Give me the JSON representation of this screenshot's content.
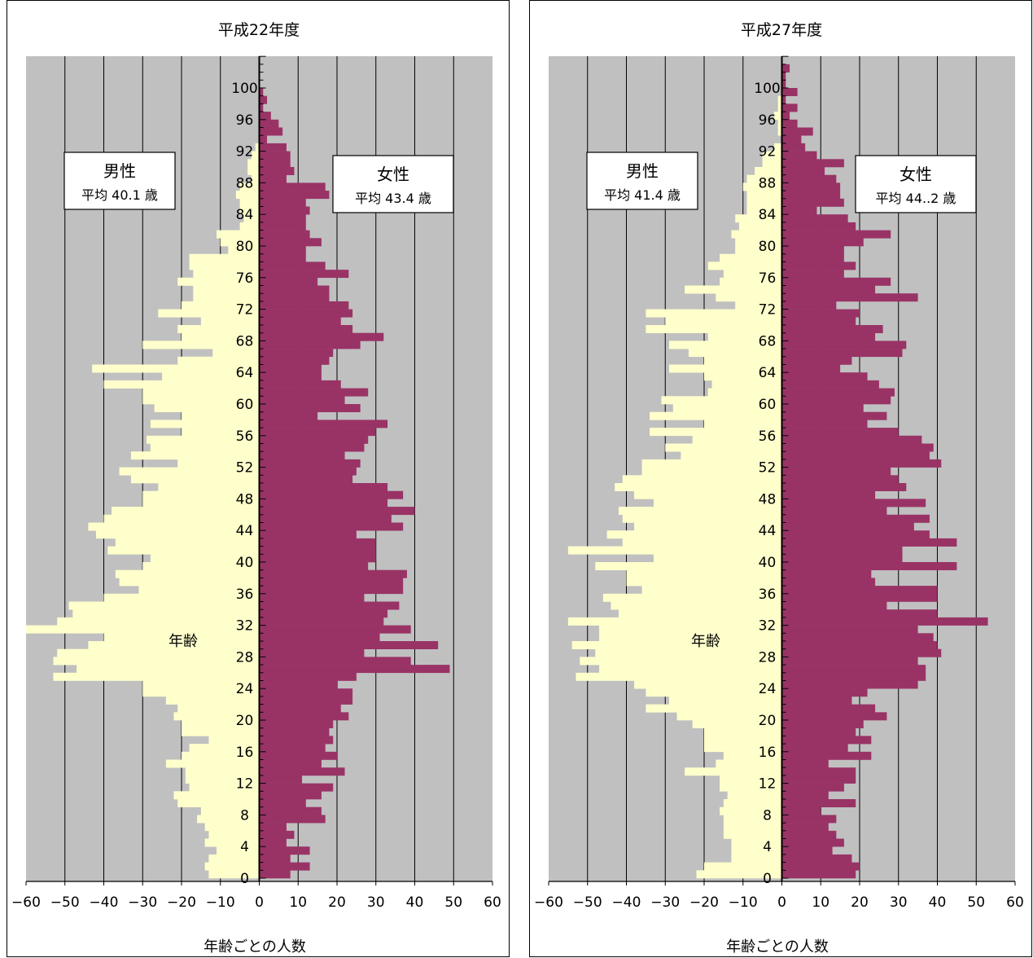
{
  "chart_data": [
    {
      "type": "bar",
      "orientation": "horizontal",
      "title": "平成22年度",
      "xlabel": "年齢ごとの人数",
      "ylabel": "年齢",
      "xlim": [
        -60,
        60
      ],
      "x_ticks": [
        "-60",
        "-50",
        "-40",
        "-30",
        "-20",
        "-10",
        "0",
        "10",
        "20",
        "30",
        "40",
        "50",
        "60"
      ],
      "age_ticks": [
        "0",
        "4",
        "8",
        "12",
        "16",
        "20",
        "24",
        "28",
        "32",
        "36",
        "40",
        "44",
        "48",
        "52",
        "56",
        "60",
        "64",
        "68",
        "72",
        "76",
        "80",
        "84",
        "88",
        "92",
        "96",
        "100"
      ],
      "grid": true,
      "legend": {
        "male_title": "男性",
        "male_avg": "平均 40.1 歳",
        "female_title": "女性",
        "female_avg": "平均 43.4 歳"
      },
      "colors": {
        "male": "#ffffcc",
        "female": "#993366",
        "plot_bg": "#c0c0c0",
        "grid": "#000000"
      },
      "ages": [
        0,
        1,
        2,
        3,
        4,
        5,
        6,
        7,
        8,
        9,
        10,
        11,
        12,
        13,
        14,
        15,
        16,
        17,
        18,
        19,
        20,
        21,
        22,
        23,
        24,
        25,
        26,
        27,
        28,
        29,
        30,
        31,
        32,
        33,
        34,
        35,
        36,
        37,
        38,
        39,
        40,
        41,
        42,
        43,
        44,
        45,
        46,
        47,
        48,
        49,
        50,
        51,
        52,
        53,
        54,
        55,
        56,
        57,
        58,
        59,
        60,
        61,
        62,
        63,
        64,
        65,
        66,
        67,
        68,
        69,
        70,
        71,
        72,
        73,
        74,
        75,
        76,
        77,
        78,
        79,
        80,
        81,
        82,
        83,
        84,
        85,
        86,
        87,
        88,
        89,
        90,
        91,
        92,
        93,
        94,
        95,
        96,
        97,
        98,
        99,
        100,
        101,
        102
      ],
      "series": [
        {
          "name": "男性",
          "values": [
            -13,
            -14,
            -13,
            -11,
            -14,
            -13,
            -14,
            -16,
            -15,
            -21,
            -22,
            -18,
            -19,
            -19,
            -24,
            -20,
            -18,
            -13,
            -20,
            -20,
            -22,
            -21,
            -24,
            -30,
            -30,
            -53,
            -47,
            -53,
            -52,
            -44,
            -40,
            -60,
            -52,
            -48,
            -49,
            -40,
            -31,
            -36,
            -37,
            -30,
            -28,
            -39,
            -37,
            -42,
            -44,
            -40,
            -38,
            -30,
            -30,
            -26,
            -33,
            -36,
            -21,
            -33,
            -28,
            -29,
            -20,
            -28,
            -20,
            -27,
            -30,
            -30,
            -40,
            -25,
            -43,
            -21,
            -12,
            -30,
            -20,
            -21,
            -15,
            -26,
            -20,
            -17,
            -17,
            -21,
            -17,
            -18,
            -18,
            -8,
            -10,
            -11,
            -5,
            -4,
            -5,
            -5,
            -6,
            -5,
            -2,
            -3,
            -3,
            -2,
            -1,
            0,
            0,
            0,
            0,
            0,
            0,
            0,
            0,
            0,
            0
          ]
        },
        {
          "name": "女性",
          "values": [
            8,
            13,
            8,
            13,
            7,
            9,
            7,
            17,
            16,
            12,
            16,
            19,
            11,
            22,
            16,
            20,
            17,
            19,
            18,
            19,
            23,
            21,
            24,
            24,
            20,
            25,
            49,
            39,
            27,
            46,
            31,
            39,
            32,
            33,
            36,
            27,
            37,
            37,
            38,
            28,
            30,
            30,
            30,
            25,
            37,
            34,
            40,
            33,
            37,
            33,
            24,
            25,
            26,
            22,
            27,
            28,
            30,
            33,
            15,
            26,
            22,
            28,
            21,
            16,
            16,
            18,
            19,
            26,
            32,
            24,
            21,
            24,
            23,
            18,
            18,
            15,
            23,
            17,
            12,
            12,
            16,
            13,
            12,
            12,
            13,
            12,
            18,
            17,
            7,
            9,
            8,
            8,
            7,
            2,
            6,
            5,
            3,
            1,
            2,
            1,
            0,
            0,
            0
          ]
        }
      ]
    },
    {
      "type": "bar",
      "orientation": "horizontal",
      "title": "平成27年度",
      "xlabel": "年齢ごとの人数",
      "ylabel": "年齢",
      "xlim": [
        -60,
        60
      ],
      "x_ticks": [
        "-60",
        "-50",
        "-40",
        "-30",
        "-20",
        "-10",
        "0",
        "10",
        "20",
        "30",
        "40",
        "50",
        "60"
      ],
      "age_ticks": [
        "0",
        "4",
        "8",
        "12",
        "16",
        "20",
        "24",
        "28",
        "32",
        "36",
        "40",
        "44",
        "48",
        "52",
        "56",
        "60",
        "64",
        "68",
        "72",
        "76",
        "80",
        "84",
        "88",
        "92",
        "96",
        "100"
      ],
      "grid": true,
      "legend": {
        "male_title": "男性",
        "male_avg": "平均 41.4 歳",
        "female_title": "女性",
        "female_avg": "平均 44..2 歳"
      },
      "colors": {
        "male": "#ffffcc",
        "female": "#993366",
        "plot_bg": "#c0c0c0",
        "grid": "#000000"
      },
      "ages": [
        0,
        1,
        2,
        3,
        4,
        5,
        6,
        7,
        8,
        9,
        10,
        11,
        12,
        13,
        14,
        15,
        16,
        17,
        18,
        19,
        20,
        21,
        22,
        23,
        24,
        25,
        26,
        27,
        28,
        29,
        30,
        31,
        32,
        33,
        34,
        35,
        36,
        37,
        38,
        39,
        40,
        41,
        42,
        43,
        44,
        45,
        46,
        47,
        48,
        49,
        50,
        51,
        52,
        53,
        54,
        55,
        56,
        57,
        58,
        59,
        60,
        61,
        62,
        63,
        64,
        65,
        66,
        67,
        68,
        69,
        70,
        71,
        72,
        73,
        74,
        75,
        76,
        77,
        78,
        79,
        80,
        81,
        82,
        83,
        84,
        85,
        86,
        87,
        88,
        89,
        90,
        91,
        92,
        93,
        94,
        95,
        96,
        97,
        98,
        99,
        100,
        101,
        102
      ],
      "series": [
        {
          "name": "男性",
          "values": [
            -22,
            -20,
            -13,
            -13,
            -13,
            -15,
            -15,
            -15,
            -16,
            -15,
            -14,
            -16,
            -16,
            -25,
            -17,
            -15,
            -20,
            -20,
            -20,
            -23,
            -27,
            -35,
            -29,
            -35,
            -38,
            -53,
            -47,
            -52,
            -48,
            -54,
            -47,
            -47,
            -55,
            -42,
            -44,
            -46,
            -36,
            -40,
            -40,
            -48,
            -33,
            -55,
            -41,
            -45,
            -38,
            -41,
            -42,
            -33,
            -38,
            -43,
            -41,
            -36,
            -36,
            -26,
            -30,
            -23,
            -34,
            -20,
            -34,
            -28,
            -31,
            -19,
            -18,
            -20,
            -29,
            -20,
            -24,
            -29,
            -19,
            -35,
            -30,
            -35,
            -12,
            -17,
            -25,
            -16,
            -15,
            -19,
            -16,
            -12,
            -12,
            -13,
            -11,
            -12,
            -9,
            -9,
            -9,
            -10,
            -9,
            -7,
            -5,
            -5,
            -2,
            0,
            -1,
            -1,
            -2,
            -1,
            -1,
            0,
            0,
            0,
            0
          ]
        },
        {
          "name": "女性",
          "values": [
            19,
            20,
            18,
            13,
            16,
            14,
            12,
            14,
            10,
            19,
            12,
            16,
            19,
            19,
            12,
            23,
            17,
            23,
            19,
            21,
            27,
            24,
            18,
            22,
            35,
            37,
            37,
            35,
            41,
            40,
            39,
            35,
            53,
            40,
            27,
            40,
            40,
            24,
            23,
            45,
            31,
            31,
            45,
            38,
            34,
            38,
            27,
            37,
            24,
            32,
            30,
            28,
            41,
            38,
            39,
            36,
            30,
            22,
            27,
            21,
            28,
            29,
            25,
            22,
            15,
            18,
            31,
            32,
            24,
            26,
            19,
            20,
            14,
            35,
            24,
            28,
            16,
            19,
            16,
            16,
            21,
            28,
            19,
            17,
            9,
            16,
            15,
            15,
            14,
            11,
            16,
            9,
            6,
            5,
            8,
            4,
            2,
            4,
            1,
            4,
            1,
            1,
            2
          ]
        }
      ]
    }
  ]
}
